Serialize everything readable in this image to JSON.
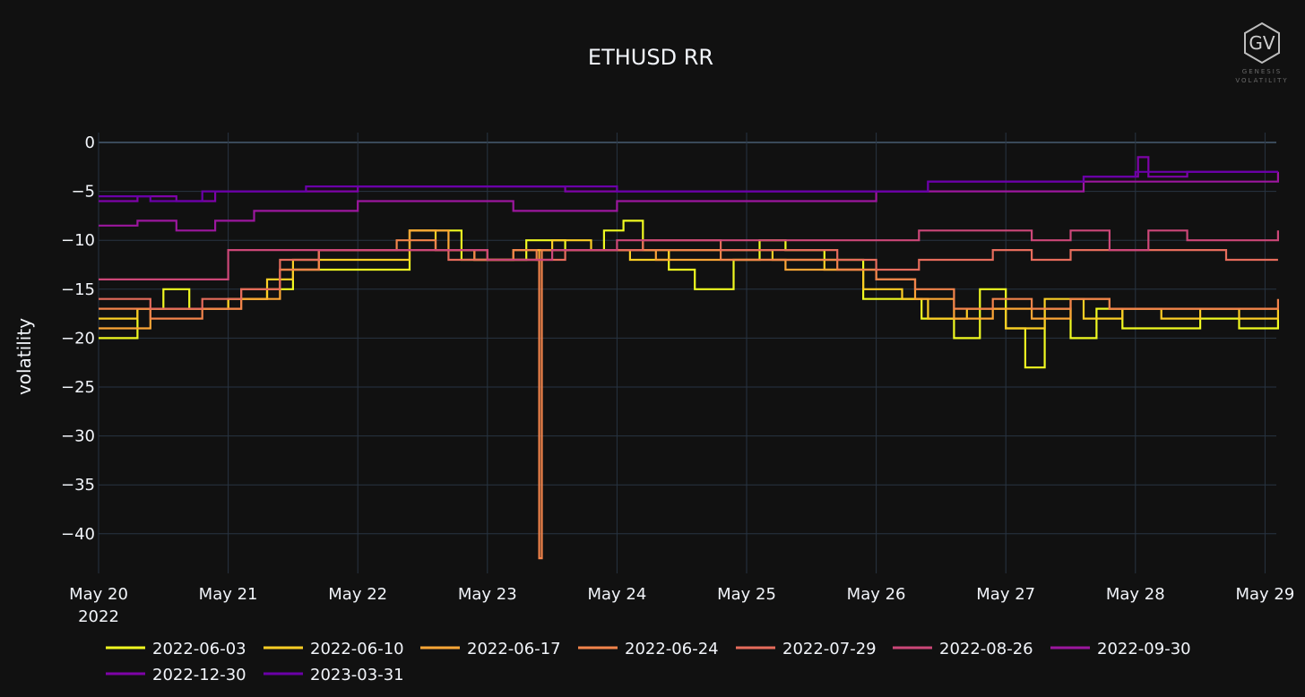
{
  "chart_data": {
    "type": "line",
    "title": "ETHUSD RR",
    "ylabel": "volatility",
    "xlabel": "",
    "ylim": [
      -43.5,
      1.0
    ],
    "xlim": [
      0,
      9.1
    ],
    "x_unit": "days since May 20 2022",
    "xticks": [
      {
        "x": 0,
        "label": "May 20",
        "sublabel": "2022"
      },
      {
        "x": 1,
        "label": "May 21"
      },
      {
        "x": 2,
        "label": "May 22"
      },
      {
        "x": 3,
        "label": "May 23"
      },
      {
        "x": 4,
        "label": "May 24"
      },
      {
        "x": 5,
        "label": "May 25"
      },
      {
        "x": 6,
        "label": "May 26"
      },
      {
        "x": 7,
        "label": "May 27"
      },
      {
        "x": 8,
        "label": "May 28"
      },
      {
        "x": 9,
        "label": "May 29"
      }
    ],
    "yticks": [
      0,
      -5,
      -10,
      -15,
      -20,
      -25,
      -30,
      -35,
      -40
    ],
    "legend_position": "bottom",
    "series": [
      {
        "name": "2022-06-03",
        "color": "#f0f921",
        "x": [
          0,
          0.3,
          0.5,
          0.7,
          1.0,
          1.3,
          1.5,
          2.0,
          2.4,
          2.6,
          2.8,
          3.0,
          3.3,
          3.6,
          3.9,
          4.05,
          4.2,
          4.4,
          4.6,
          4.9,
          5.1,
          5.3,
          5.6,
          5.9,
          6.2,
          6.35,
          6.6,
          6.8,
          7.0,
          7.15,
          7.3,
          7.5,
          7.7,
          7.9,
          8.2,
          8.5,
          8.8,
          9.1
        ],
        "y": [
          -20,
          -17,
          -15,
          -17,
          -16,
          -15,
          -13,
          -13,
          -9,
          -9,
          -12,
          -12,
          -10,
          -11,
          -9,
          -8,
          -11,
          -13,
          -15,
          -12,
          -10,
          -11,
          -12,
          -16,
          -16,
          -18,
          -20,
          -15,
          -19,
          -23,
          -17,
          -20,
          -17,
          -19,
          -19,
          -18,
          -19,
          -18
        ]
      },
      {
        "name": "2022-06-10",
        "color": "#fcce25",
        "x": [
          0,
          0.3,
          0.6,
          1.0,
          1.3,
          1.5,
          2.0,
          2.4,
          2.6,
          2.9,
          3.2,
          3.5,
          3.8,
          4.1,
          4.4,
          4.8,
          5.2,
          5.6,
          5.9,
          6.2,
          6.4,
          6.7,
          7.0,
          7.3,
          7.6,
          7.9,
          8.2,
          8.5,
          8.8,
          9.1
        ],
        "y": [
          -18,
          -17,
          -17,
          -16,
          -14,
          -12,
          -12,
          -9,
          -11,
          -12,
          -11,
          -10,
          -11,
          -12,
          -11,
          -11,
          -12,
          -13,
          -15,
          -16,
          -18,
          -17,
          -19,
          -16,
          -18,
          -17,
          -18,
          -17,
          -18,
          -17
        ]
      },
      {
        "name": "2022-06-17",
        "color": "#fca636",
        "x": [
          0,
          0.4,
          0.8,
          1.1,
          1.4,
          1.7,
          2.0,
          2.4,
          2.7,
          3.0,
          3.4,
          3.7,
          4.0,
          4.3,
          4.7,
          5.0,
          5.3,
          5.6,
          6.0,
          6.3,
          6.6,
          6.9,
          7.2,
          7.5,
          7.8,
          8.1,
          8.4,
          8.7,
          9.1
        ],
        "y": [
          -19,
          -17,
          -17,
          -16,
          -13,
          -11,
          -11,
          -9,
          -11,
          -12,
          -11,
          -11,
          -11,
          -12,
          -12,
          -12,
          -13,
          -13,
          -14,
          -16,
          -18,
          -17,
          -18,
          -16,
          -17,
          -17,
          -17,
          -17,
          -17
        ]
      },
      {
        "name": "2022-06-24",
        "color": "#f2844b",
        "x": [
          0,
          0.4,
          0.8,
          1.1,
          1.4,
          1.7,
          2.0,
          2.3,
          2.6,
          2.9,
          3.2,
          3.38,
          3.4,
          3.42,
          3.6,
          3.9,
          4.2,
          4.5,
          4.8,
          5.1,
          5.4,
          5.7,
          6.0,
          6.3,
          6.6,
          6.9,
          7.2,
          7.5,
          7.8,
          8.1,
          8.4,
          8.7,
          9.1
        ],
        "y": [
          -17,
          -18,
          -17,
          -15,
          -13,
          -11,
          -11,
          -10,
          -11,
          -12,
          -11,
          -12,
          -42.5,
          -11,
          -11,
          -11,
          -11,
          -11,
          -12,
          -12,
          -12,
          -13,
          -14,
          -15,
          -17,
          -16,
          -17,
          -16,
          -17,
          -17,
          -17,
          -17,
          -16
        ]
      },
      {
        "name": "2022-07-29",
        "color": "#e66c5c",
        "x": [
          0,
          0.4,
          0.8,
          1.1,
          1.4,
          1.7,
          2.0,
          2.4,
          2.7,
          3.0,
          3.3,
          3.6,
          3.9,
          4.2,
          4.5,
          4.8,
          5.1,
          5.4,
          5.7,
          6.0,
          6.33,
          6.6,
          6.9,
          7.2,
          7.5,
          7.8,
          8.1,
          8.4,
          8.7,
          9.1
        ],
        "y": [
          -16,
          -17,
          -16,
          -15,
          -12,
          -11,
          -11,
          -11,
          -12,
          -12,
          -12,
          -11,
          -11,
          -10,
          -10,
          -11,
          -11,
          -11,
          -12,
          -13,
          -12,
          -12,
          -11,
          -12,
          -11,
          -11,
          -11,
          -11,
          -12,
          -12
        ]
      },
      {
        "name": "2022-08-26",
        "color": "#cc4778",
        "x": [
          0,
          0.5,
          1.0,
          1.5,
          2.0,
          2.5,
          3.0,
          3.5,
          4.0,
          4.5,
          5.0,
          5.5,
          6.0,
          6.33,
          6.6,
          6.9,
          7.2,
          7.5,
          7.8,
          8.1,
          8.4,
          8.7,
          9.1
        ],
        "y": [
          -14,
          -14,
          -11,
          -11,
          -11,
          -11,
          -12,
          -11,
          -10,
          -10,
          -10,
          -10,
          -10,
          -9,
          -9,
          -9,
          -10,
          -9,
          -11,
          -9,
          -10,
          -10,
          -9
        ]
      },
      {
        "name": "2022-09-30",
        "color": "#9c179e",
        "x": [
          0,
          0.3,
          0.6,
          0.9,
          1.2,
          1.6,
          2.0,
          2.4,
          2.8,
          3.2,
          3.6,
          4.0,
          4.4,
          4.8,
          5.2,
          5.6,
          6.0,
          6.4,
          6.8,
          7.2,
          7.6,
          8.0,
          8.4,
          8.8,
          9.1
        ],
        "y": [
          -8.5,
          -8,
          -9,
          -8,
          -7,
          -7,
          -6,
          -6,
          -6,
          -7,
          -7,
          -6,
          -6,
          -6,
          -6,
          -6,
          -5,
          -5,
          -5,
          -5,
          -4,
          -4,
          -4,
          -4,
          -3
        ]
      },
      {
        "name": "2022-12-30",
        "color": "#7e03a8",
        "x": [
          0,
          0.3,
          0.6,
          0.9,
          1.2,
          1.6,
          2.0,
          2.4,
          2.8,
          3.2,
          3.6,
          4.0,
          4.4,
          4.8,
          5.2,
          5.6,
          6.0,
          6.4,
          6.8,
          7.2,
          7.6,
          8.0,
          8.02,
          8.1,
          8.4,
          8.8,
          9.1
        ],
        "y": [
          -6,
          -5.5,
          -6,
          -5,
          -5,
          -5,
          -4.5,
          -4.5,
          -4.5,
          -4.5,
          -5,
          -5,
          -5,
          -5,
          -5,
          -5,
          -5,
          -4,
          -4,
          -4,
          -3.5,
          -3.5,
          -1.5,
          -3.5,
          -3,
          -3,
          -3
        ]
      },
      {
        "name": "2023-03-31",
        "color": "#6a00a8",
        "x": [
          0,
          0.4,
          0.8,
          1.2,
          1.6,
          2.0,
          2.4,
          2.8,
          3.2,
          3.6,
          4.0,
          4.4,
          4.8,
          5.2,
          5.6,
          6.0,
          6.4,
          6.8,
          7.2,
          7.6,
          8.0,
          8.4,
          8.8,
          9.1
        ],
        "y": [
          -5.5,
          -6,
          -5,
          -5,
          -4.5,
          -4.5,
          -4.5,
          -4.5,
          -4.5,
          -4.5,
          -5,
          -5,
          -5,
          -5,
          -5,
          -5,
          -4,
          -4,
          -4,
          -3.5,
          -3,
          -3,
          -3,
          -3
        ]
      }
    ]
  },
  "branding": {
    "logo_initials": "GV",
    "logo_subtitle_1": "GENESIS",
    "logo_subtitle_2": "VOLATILITY"
  }
}
